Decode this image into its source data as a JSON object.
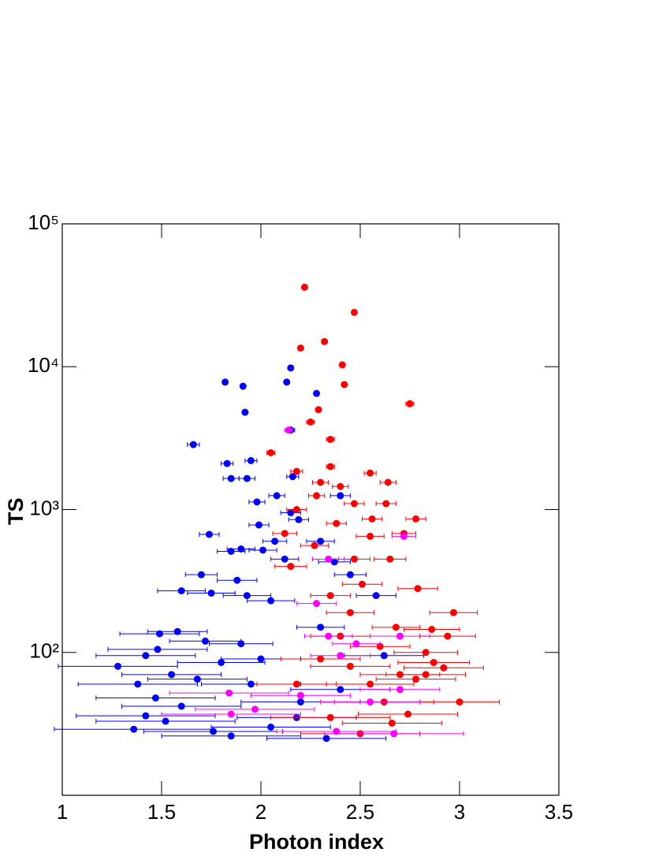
{
  "chart_data": {
    "type": "scatter",
    "x_label": "Photon index",
    "y_label": "TS",
    "xlim": [
      1,
      3.5
    ],
    "ylim": [
      10,
      100000
    ],
    "log_y": true,
    "xticks": [
      1,
      1.5,
      2,
      2.5,
      3,
      3.5
    ],
    "yticks": [
      {
        "value": 100,
        "label": "10²"
      },
      {
        "value": 1000,
        "label": "10³"
      },
      {
        "value": 10000,
        "label": "10⁴"
      },
      {
        "value": 100000,
        "label": "10⁵"
      }
    ],
    "series": [
      {
        "color": "#0000ff",
        "x": [
          1.82,
          1.91,
          1.92,
          2.13,
          2.15,
          2.28,
          2.15,
          1.66,
          1.83,
          1.95,
          1.85,
          1.93,
          2.16,
          2.08,
          1.98,
          2.15,
          2.19,
          1.74,
          1.99,
          2.07,
          1.85,
          1.9,
          2.01,
          2.12,
          1.7,
          1.88,
          1.6,
          1.75,
          1.93,
          2.05,
          1.58,
          1.49,
          1.72,
          1.9,
          1.42,
          1.48,
          1.28,
          1.55,
          1.68,
          1.8,
          2.0,
          1.95,
          1.47,
          1.6,
          1.38,
          1.42,
          1.36,
          1.52,
          1.76,
          1.85,
          2.05,
          2.18,
          2.33,
          2.2,
          2.4,
          2.62,
          2.37,
          2.4,
          2.3,
          2.45,
          2.58,
          2.3
        ],
        "values": [
          7800,
          7300,
          4800,
          7800,
          9800,
          6500,
          3600,
          2850,
          2100,
          2200,
          1650,
          1650,
          1700,
          1250,
          1130,
          950,
          850,
          670,
          780,
          600,
          510,
          530,
          520,
          450,
          350,
          320,
          270,
          260,
          250,
          230,
          140,
          135,
          120,
          115,
          95,
          105,
          80,
          70,
          65,
          85,
          90,
          60,
          48,
          42,
          60,
          36,
          29,
          33,
          28,
          26,
          30,
          35,
          25,
          45,
          55,
          95,
          430,
          1250,
          600,
          350,
          250,
          150
        ],
        "xerr": [
          0.01,
          0.01,
          0.01,
          0.01,
          0.01,
          0.01,
          0.02,
          0.03,
          0.03,
          0.03,
          0.04,
          0.04,
          0.03,
          0.04,
          0.04,
          0.05,
          0.05,
          0.05,
          0.05,
          0.06,
          0.07,
          0.07,
          0.07,
          0.07,
          0.08,
          0.1,
          0.12,
          0.12,
          0.12,
          0.12,
          0.15,
          0.2,
          0.18,
          0.16,
          0.25,
          0.25,
          0.3,
          0.25,
          0.25,
          0.22,
          0.2,
          0.25,
          0.3,
          0.3,
          0.3,
          0.35,
          0.4,
          0.35,
          0.35,
          0.35,
          0.3,
          0.3,
          0.3,
          0.3,
          0.25,
          0.2,
          0.08,
          0.05,
          0.07,
          0.08,
          0.1,
          0.12
        ]
      },
      {
        "color": "#ff0000",
        "x": [
          2.22,
          2.47,
          2.2,
          2.32,
          2.41,
          2.42,
          2.75,
          2.29,
          2.25,
          2.35,
          2.05,
          2.35,
          2.18,
          2.3,
          2.55,
          2.64,
          2.4,
          2.28,
          2.47,
          2.63,
          2.18,
          2.78,
          2.56,
          2.38,
          2.72,
          2.12,
          2.55,
          2.27,
          2.65,
          2.47,
          2.15,
          2.79,
          2.51,
          2.97,
          2.35,
          2.45,
          2.68,
          2.86,
          2.94,
          2.4,
          2.6,
          2.83,
          3.0,
          2.87,
          2.92,
          2.7,
          2.45,
          2.3,
          2.55,
          2.74,
          2.5,
          2.35,
          2.62,
          2.18,
          2.78,
          2.83,
          2.66
        ],
        "values": [
          36000,
          24000,
          13500,
          15000,
          10300,
          7500,
          5500,
          5000,
          4100,
          3100,
          2500,
          2000,
          1850,
          1550,
          1800,
          1550,
          1450,
          1250,
          1100,
          1100,
          1000,
          860,
          860,
          800,
          680,
          680,
          650,
          560,
          450,
          450,
          400,
          280,
          300,
          190,
          250,
          190,
          150,
          145,
          130,
          130,
          110,
          100,
          45,
          85,
          78,
          70,
          80,
          90,
          60,
          37,
          27,
          35,
          45,
          60,
          65,
          70,
          32
        ],
        "xerr": [
          0.01,
          0.01,
          0.01,
          0.01,
          0.01,
          0.01,
          0.02,
          0.01,
          0.02,
          0.02,
          0.02,
          0.02,
          0.03,
          0.04,
          0.03,
          0.04,
          0.04,
          0.04,
          0.05,
          0.05,
          0.05,
          0.05,
          0.05,
          0.05,
          0.06,
          0.06,
          0.07,
          0.07,
          0.08,
          0.08,
          0.08,
          0.1,
          0.1,
          0.12,
          0.1,
          0.12,
          0.12,
          0.14,
          0.14,
          0.15,
          0.15,
          0.16,
          0.2,
          0.18,
          0.2,
          0.2,
          0.2,
          0.2,
          0.22,
          0.25,
          0.3,
          0.3,
          0.25,
          0.2,
          0.2,
          0.2,
          0.25
        ]
      },
      {
        "color": "#ff00ff",
        "x": [
          2.14,
          2.34,
          2.72,
          2.28,
          2.34,
          2.48,
          2.7,
          2.4,
          2.2,
          1.84,
          1.97,
          1.85,
          2.7,
          2.55,
          2.67,
          2.38
        ],
        "values": [
          3600,
          450,
          650,
          220,
          130,
          115,
          130,
          95,
          50,
          52,
          40,
          37,
          55,
          45,
          27,
          28
        ],
        "xerr": [
          0.02,
          0.08,
          0.06,
          0.1,
          0.12,
          0.12,
          0.15,
          0.15,
          0.25,
          0.3,
          0.3,
          0.35,
          0.2,
          0.25,
          0.35,
          0.3
        ]
      }
    ]
  }
}
